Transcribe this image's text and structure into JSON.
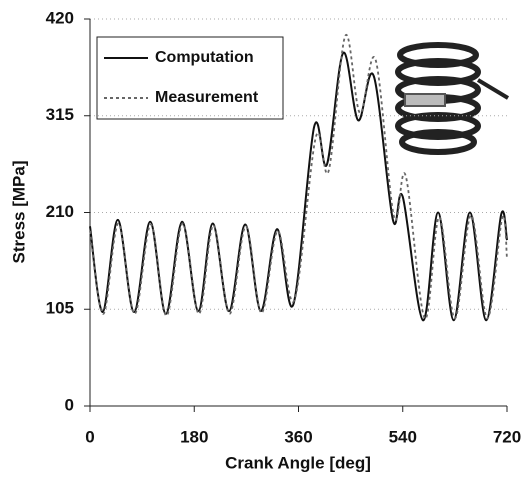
{
  "chart_data": {
    "type": "line",
    "xlabel": "Crank Angle [deg]",
    "ylabel": "Stress [MPa]",
    "xlim": [
      0,
      720
    ],
    "xticks": [
      0,
      180,
      360,
      540,
      720
    ],
    "ylim": [
      0,
      420
    ],
    "yticks": [
      0,
      105,
      210,
      315,
      420
    ],
    "grid": true,
    "legend": "upper left",
    "series": [
      {
        "name": "Computation",
        "color": "#111111",
        "style": "solid",
        "x": [
          0,
          22,
          48,
          76,
          104,
          131,
          159,
          187,
          212,
          240,
          268,
          295,
          323,
          351,
          387,
          409,
          437,
          463,
          490,
          523,
          540,
          575,
          601,
          628,
          656,
          684,
          710,
          720
        ],
        "values": [
          195,
          102,
          202,
          102,
          200,
          100,
          200,
          103,
          198,
          103,
          197,
          103,
          192,
          110,
          303,
          262,
          383,
          310,
          358,
          202,
          227,
          93,
          210,
          93,
          210,
          93,
          208,
          180
        ]
      },
      {
        "name": "Measurement",
        "color": "#666666",
        "style": "dotted",
        "x": [
          0,
          23,
          49,
          77,
          105,
          132,
          160,
          188,
          213,
          241,
          269,
          296,
          324,
          353,
          390,
          412,
          441,
          466,
          493,
          525,
          545,
          578,
          603,
          630,
          658,
          686,
          712,
          720
        ],
        "values": [
          190,
          100,
          198,
          100,
          197,
          98,
          198,
          100,
          196,
          100,
          195,
          101,
          190,
          115,
          292,
          255,
          402,
          318,
          376,
          205,
          250,
          95,
          205,
          95,
          207,
          95,
          205,
          160
        ]
      }
    ]
  }
}
